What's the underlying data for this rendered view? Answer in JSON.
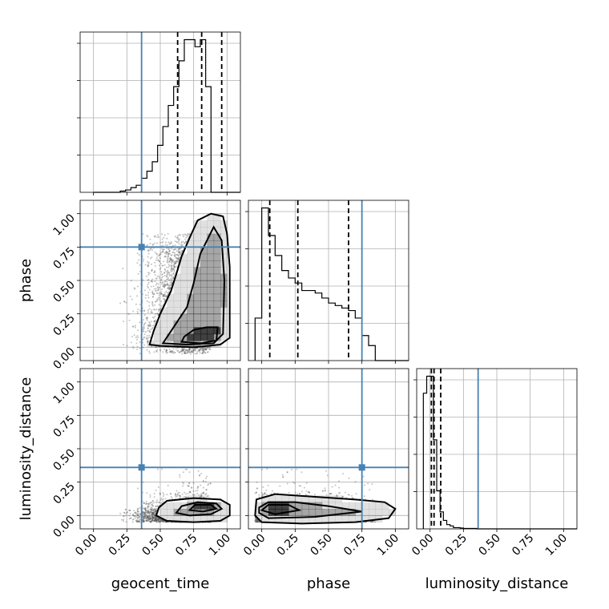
{
  "chart_data": {
    "type": "corner",
    "parameters": [
      "geocent_time",
      "phase",
      "luminosity_distance"
    ],
    "axis_range": [
      -0.1,
      1.1
    ],
    "ticks": [
      0.0,
      0.25,
      0.5,
      0.75,
      1.0
    ],
    "tick_labels": [
      "0.00",
      "0.25",
      "0.50",
      "0.75",
      "1.00"
    ],
    "grid": true,
    "truth_color": "#4682b4",
    "truths": {
      "geocent_time": 0.36,
      "phase": 0.75,
      "luminosity_distance": 0.36
    },
    "quantiles": {
      "geocent_time": [
        0.63,
        0.81,
        0.96
      ],
      "phase": [
        0.06,
        0.27,
        0.65
      ],
      "luminosity_distance": [
        0.01,
        0.03,
        0.08
      ]
    },
    "histograms": {
      "geocent_time": {
        "bin_start": 0.0,
        "bin_width": 0.04,
        "counts": [
          0,
          0,
          0,
          0,
          0,
          0.5,
          1,
          2,
          3,
          6,
          9,
          13,
          20,
          28,
          37,
          45,
          56,
          65,
          65,
          62,
          65,
          45,
          0,
          0,
          0,
          0,
          0,
          0
        ]
      },
      "phase": {
        "bin_start": -0.05,
        "bin_width": 0.05,
        "counts": [
          17,
          61,
          50,
          42,
          36,
          33,
          31,
          28,
          28,
          27,
          25,
          23,
          22,
          21,
          20,
          17,
          10,
          6,
          0,
          0,
          0,
          0,
          0,
          0
        ]
      },
      "luminosity_distance": {
        "bin_start": -0.05,
        "bin_width": 0.025,
        "counts": [
          32,
          36,
          36,
          21,
          9,
          4,
          2,
          1,
          0.7,
          0.3,
          0.3,
          0.2,
          0.1,
          0.1,
          0.1,
          0.1,
          0,
          0,
          0,
          0,
          0,
          0,
          0,
          0,
          0,
          0,
          0,
          0,
          0,
          0,
          0,
          0,
          0,
          0,
          0,
          0,
          0,
          0,
          0,
          0,
          0,
          0,
          0,
          0,
          0,
          0,
          0,
          0
        ]
      }
    },
    "joint": {
      "phase_vs_geocent_time": {
        "contours": [
          [
            [
              0.42,
              0.02
            ],
            [
              0.5,
              0.01
            ],
            [
              0.75,
              0.0
            ],
            [
              0.95,
              0.02
            ],
            [
              1.02,
              0.07
            ],
            [
              1.02,
              0.6
            ],
            [
              1.0,
              0.85
            ],
            [
              0.97,
              0.98
            ],
            [
              0.88,
              1.0
            ],
            [
              0.78,
              0.95
            ],
            [
              0.72,
              0.82
            ],
            [
              0.66,
              0.68
            ],
            [
              0.63,
              0.58
            ],
            [
              0.58,
              0.42
            ],
            [
              0.5,
              0.25
            ],
            [
              0.45,
              0.12
            ],
            [
              0.42,
              0.02
            ]
          ],
          [
            [
              0.52,
              0.03
            ],
            [
              0.7,
              0.02
            ],
            [
              0.9,
              0.03
            ],
            [
              0.97,
              0.1
            ],
            [
              0.98,
              0.5
            ],
            [
              0.96,
              0.8
            ],
            [
              0.9,
              0.9
            ],
            [
              0.85,
              0.8
            ],
            [
              0.8,
              0.7
            ],
            [
              0.75,
              0.48
            ],
            [
              0.7,
              0.3
            ],
            [
              0.6,
              0.15
            ],
            [
              0.52,
              0.03
            ]
          ],
          [
            [
              0.66,
              0.04
            ],
            [
              0.8,
              0.03
            ],
            [
              0.92,
              0.05
            ],
            [
              0.93,
              0.15
            ],
            [
              0.85,
              0.15
            ],
            [
              0.75,
              0.13
            ],
            [
              0.68,
              0.08
            ],
            [
              0.66,
              0.04
            ]
          ]
        ]
      },
      "luminosity_distance_vs_geocent_time": {
        "contours": [
          [
            [
              0.47,
              0.0
            ],
            [
              0.55,
              -0.04
            ],
            [
              0.75,
              -0.05
            ],
            [
              0.95,
              -0.04
            ],
            [
              1.02,
              0.0
            ],
            [
              1.02,
              0.08
            ],
            [
              0.95,
              0.12
            ],
            [
              0.75,
              0.13
            ],
            [
              0.55,
              0.11
            ],
            [
              0.49,
              0.06
            ],
            [
              0.47,
              0.0
            ]
          ],
          [
            [
              0.62,
              0.02
            ],
            [
              0.72,
              0.0
            ],
            [
              0.88,
              0.01
            ],
            [
              0.96,
              0.05
            ],
            [
              0.92,
              0.09
            ],
            [
              0.78,
              0.1
            ],
            [
              0.66,
              0.07
            ],
            [
              0.62,
              0.02
            ]
          ],
          [
            [
              0.72,
              0.04
            ],
            [
              0.82,
              0.03
            ],
            [
              0.92,
              0.05
            ],
            [
              0.88,
              0.08
            ],
            [
              0.76,
              0.08
            ],
            [
              0.72,
              0.04
            ]
          ]
        ]
      },
      "luminosity_distance_vs_phase": {
        "contours": [
          [
            [
              -0.05,
              0.0
            ],
            [
              0.0,
              -0.05
            ],
            [
              0.3,
              -0.06
            ],
            [
              0.7,
              -0.05
            ],
            [
              0.95,
              -0.02
            ],
            [
              1.0,
              0.05
            ],
            [
              0.92,
              0.1
            ],
            [
              0.7,
              0.12
            ],
            [
              0.4,
              0.14
            ],
            [
              0.1,
              0.16
            ],
            [
              -0.04,
              0.12
            ],
            [
              -0.05,
              0.0
            ]
          ],
          [
            [
              -0.02,
              0.02
            ],
            [
              0.05,
              -0.02
            ],
            [
              0.4,
              -0.01
            ],
            [
              0.75,
              0.03
            ],
            [
              0.5,
              0.07
            ],
            [
              0.25,
              0.1
            ],
            [
              0.05,
              0.1
            ],
            [
              -0.02,
              0.06
            ],
            [
              -0.02,
              0.02
            ]
          ],
          [
            [
              0.0,
              0.04
            ],
            [
              0.1,
              0.01
            ],
            [
              0.28,
              0.04
            ],
            [
              0.2,
              0.08
            ],
            [
              0.05,
              0.08
            ],
            [
              0.0,
              0.04
            ]
          ]
        ]
      }
    }
  }
}
